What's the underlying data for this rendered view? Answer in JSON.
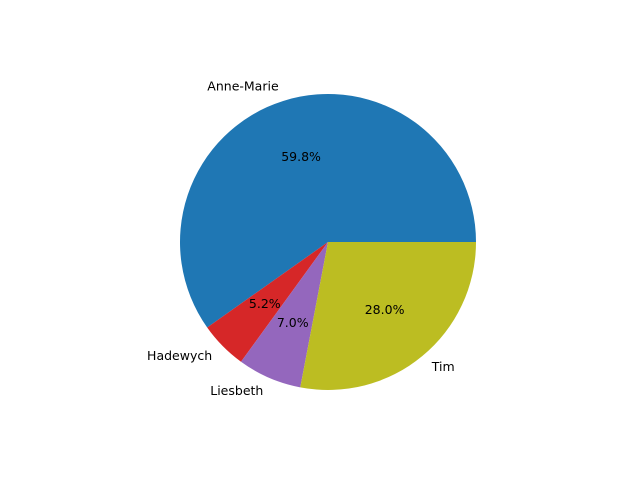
{
  "chart_data": {
    "type": "pie",
    "title": "",
    "start_angle_deg": 0,
    "direction": "counterclockwise",
    "slices": [
      {
        "label": "Anne-Marie",
        "value": 59.8,
        "pct_text": "59.8%",
        "color": "#1f77b4"
      },
      {
        "label": "Hadewych",
        "value": 5.2,
        "pct_text": "5.2%",
        "color": "#d62728"
      },
      {
        "label": "Liesbeth",
        "value": 7.0,
        "pct_text": "7.0%",
        "color": "#9467bd"
      },
      {
        "label": "Tim",
        "value": 28.0,
        "pct_text": "28.0%",
        "color": "#bcbd22"
      }
    ]
  }
}
